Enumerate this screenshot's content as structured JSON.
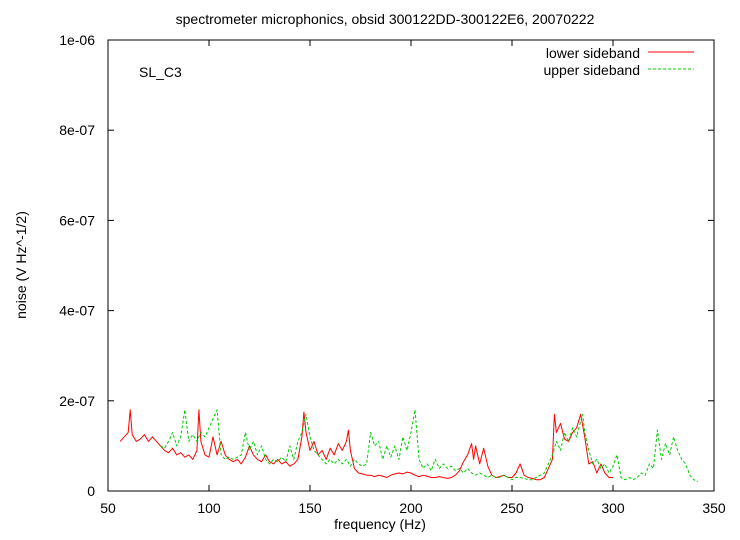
{
  "chart_data": {
    "type": "line",
    "title": "spectrometer microphonics, obsid 300122DD-300122E6, 20070222",
    "annotation": "SL_C3",
    "xlabel": "frequency (Hz)",
    "ylabel": "noise (V Hz^-1/2)",
    "xlim": [
      50,
      350
    ],
    "ylim": [
      0,
      1e-06
    ],
    "xticks": [
      50,
      100,
      150,
      200,
      250,
      300,
      350
    ],
    "xtick_labels": [
      "50",
      "100",
      "150",
      "200",
      "250",
      "300",
      "350"
    ],
    "yticks": [
      0,
      2e-07,
      4e-07,
      6e-07,
      8e-07,
      1e-06
    ],
    "ytick_labels": [
      "0",
      "2e-07",
      "4e-07",
      "6e-07",
      "8e-07",
      "1e-06"
    ],
    "grid": false,
    "legend_position": "top-right",
    "series": [
      {
        "name": "lower sideband",
        "color": "#ff0000",
        "x": [
          56,
          58,
          60,
          61,
          62,
          64,
          66,
          68,
          70,
          72,
          74,
          76,
          78,
          80,
          82,
          84,
          86,
          88,
          90,
          92,
          94,
          95,
          96,
          98,
          100,
          102,
          104,
          106,
          108,
          110,
          112,
          114,
          116,
          118,
          120,
          122,
          124,
          126,
          128,
          130,
          132,
          134,
          136,
          138,
          140,
          142,
          144,
          146,
          147,
          148,
          150,
          152,
          154,
          156,
          158,
          160,
          162,
          164,
          166,
          168,
          169,
          170,
          172,
          174,
          176,
          178,
          180,
          182,
          184,
          186,
          188,
          190,
          192,
          194,
          196,
          198,
          200,
          202,
          204,
          206,
          208,
          210,
          212,
          214,
          216,
          218,
          220,
          222,
          224,
          226,
          228,
          230,
          231,
          232,
          234,
          236,
          238,
          240,
          242,
          244,
          246,
          248,
          250,
          252,
          254,
          256,
          258,
          260,
          262,
          264,
          266,
          268,
          270,
          271,
          272,
          274,
          276,
          278,
          280,
          282,
          284,
          286,
          288,
          290,
          292,
          294,
          296,
          298,
          300
        ],
        "y": [
          1.1e-07,
          1.2e-07,
          1.3e-07,
          1.8e-07,
          1.25e-07,
          1.1e-07,
          1.15e-07,
          1.25e-07,
          1.1e-07,
          1.2e-07,
          1.1e-07,
          1e-07,
          9e-08,
          8.5e-08,
          9.5e-08,
          8e-08,
          8.5e-08,
          7.5e-08,
          8e-08,
          7e-08,
          9e-08,
          1.8e-07,
          1.1e-07,
          8e-08,
          7.5e-08,
          1.2e-07,
          8e-08,
          1.1e-07,
          8e-08,
          7e-08,
          6.5e-08,
          7e-08,
          6e-08,
          7.5e-08,
          1e-07,
          8e-08,
          7e-08,
          6.5e-08,
          8e-08,
          6.5e-08,
          6e-08,
          7e-08,
          6e-08,
          6.5e-08,
          5.5e-08,
          6e-08,
          7e-08,
          1.2e-07,
          1.75e-07,
          1.3e-07,
          9e-08,
          1.1e-07,
          8e-08,
          9e-08,
          7e-08,
          9.5e-08,
          8e-08,
          1.05e-07,
          9e-08,
          1.1e-07,
          1.35e-07,
          9e-08,
          5e-08,
          4e-08,
          3.8e-08,
          3.5e-08,
          3.5e-08,
          3.2e-08,
          3.5e-08,
          3.3e-08,
          3e-08,
          3.5e-08,
          3.8e-08,
          4e-08,
          3.8e-08,
          4.2e-08,
          4e-08,
          3.5e-08,
          3.2e-08,
          3.5e-08,
          3.3e-08,
          3e-08,
          3e-08,
          3.2e-08,
          3e-08,
          2.8e-08,
          3e-08,
          3.5e-08,
          4.5e-08,
          6.5e-08,
          8e-08,
          1.05e-07,
          7e-08,
          1e-07,
          6e-08,
          9.5e-08,
          5.5e-08,
          3.5e-08,
          3e-08,
          3.2e-08,
          3.5e-08,
          3e-08,
          3e-08,
          4e-08,
          6e-08,
          3.5e-08,
          3e-08,
          2.8e-08,
          2.5e-08,
          2.5e-08,
          3e-08,
          5e-08,
          7e-08,
          1.7e-07,
          1.3e-07,
          1.5e-07,
          1.15e-07,
          1.1e-07,
          1.3e-07,
          1.4e-07,
          1.7e-07,
          1.2e-07,
          6e-08,
          6.5e-08,
          4e-08,
          6e-08,
          4e-08,
          3e-08,
          3e-08
        ]
      },
      {
        "name": "upper sideband",
        "color": "#00cc00",
        "x": [
          76,
          78,
          80,
          82,
          84,
          86,
          88,
          90,
          92,
          94,
          96,
          98,
          100,
          102,
          104,
          106,
          108,
          110,
          112,
          114,
          116,
          118,
          120,
          122,
          124,
          126,
          128,
          130,
          132,
          134,
          136,
          138,
          140,
          142,
          144,
          146,
          148,
          150,
          152,
          154,
          156,
          158,
          160,
          162,
          164,
          166,
          168,
          170,
          172,
          174,
          176,
          178,
          180,
          182,
          184,
          186,
          188,
          190,
          192,
          194,
          196,
          198,
          200,
          202,
          204,
          206,
          208,
          210,
          212,
          214,
          216,
          218,
          220,
          222,
          224,
          226,
          228,
          230,
          232,
          234,
          236,
          238,
          240,
          242,
          244,
          246,
          248,
          250,
          252,
          254,
          256,
          258,
          260,
          262,
          264,
          266,
          268,
          270,
          272,
          274,
          276,
          278,
          280,
          282,
          284,
          285,
          286,
          288,
          290,
          292,
          294,
          296,
          298,
          300,
          302,
          304,
          306,
          308,
          310,
          312,
          314,
          316,
          318,
          320,
          322,
          324,
          326,
          328,
          330,
          332,
          334,
          336,
          338,
          340,
          342
        ],
        "y": [
          1e-07,
          9.5e-08,
          1.1e-07,
          1.3e-07,
          1e-07,
          1.2e-07,
          1.8e-07,
          1.1e-07,
          1.25e-07,
          1.1e-07,
          1.3e-07,
          1.2e-07,
          1.4e-07,
          1.6e-07,
          1.8e-07,
          8e-08,
          7e-08,
          7.5e-08,
          7e-08,
          7.5e-08,
          8e-08,
          1.3e-07,
          9e-08,
          1.1e-07,
          8e-08,
          1e-07,
          7e-08,
          6e-08,
          7e-08,
          6.5e-08,
          7.5e-08,
          6.5e-08,
          1e-07,
          7e-08,
          1.1e-07,
          1.3e-07,
          1.7e-07,
          1.2e-07,
          9e-08,
          8e-08,
          7e-08,
          6e-08,
          7e-08,
          6e-08,
          7e-08,
          6e-08,
          7e-08,
          5.5e-08,
          7e-08,
          6e-08,
          5.5e-08,
          6e-08,
          1.3e-07,
          1e-07,
          1.1e-07,
          7e-08,
          1e-07,
          7.5e-08,
          1e-07,
          7e-08,
          1.2e-07,
          9e-08,
          1.3e-07,
          1.8e-07,
          7e-08,
          5e-08,
          6e-08,
          4.5e-08,
          7e-08,
          5e-08,
          6e-08,
          5e-08,
          5.5e-08,
          4.5e-08,
          5e-08,
          4e-08,
          5e-08,
          4e-08,
          3.5e-08,
          4e-08,
          3.5e-08,
          3e-08,
          3.5e-08,
          3e-08,
          3e-08,
          3.5e-08,
          3e-08,
          2.5e-08,
          3e-08,
          3e-08,
          2.8e-08,
          2.5e-08,
          2.5e-08,
          3e-08,
          3.5e-08,
          4e-08,
          6e-08,
          8e-08,
          1.1e-07,
          9e-08,
          1.3e-07,
          1.1e-07,
          1.4e-07,
          1.2e-07,
          1.55e-07,
          1.7e-07,
          1.3e-07,
          9e-08,
          6e-08,
          7e-08,
          5e-08,
          6e-08,
          4e-08,
          5.5e-08,
          8e-08,
          3e-08,
          2.5e-08,
          3e-08,
          2.5e-08,
          3e-08,
          4e-08,
          3.5e-08,
          6e-08,
          5e-08,
          1.35e-07,
          7e-08,
          1.05e-07,
          8e-08,
          1.2e-07,
          9e-08,
          7e-08,
          6e-08,
          3.5e-08,
          2.5e-08,
          2e-08
        ]
      }
    ]
  }
}
